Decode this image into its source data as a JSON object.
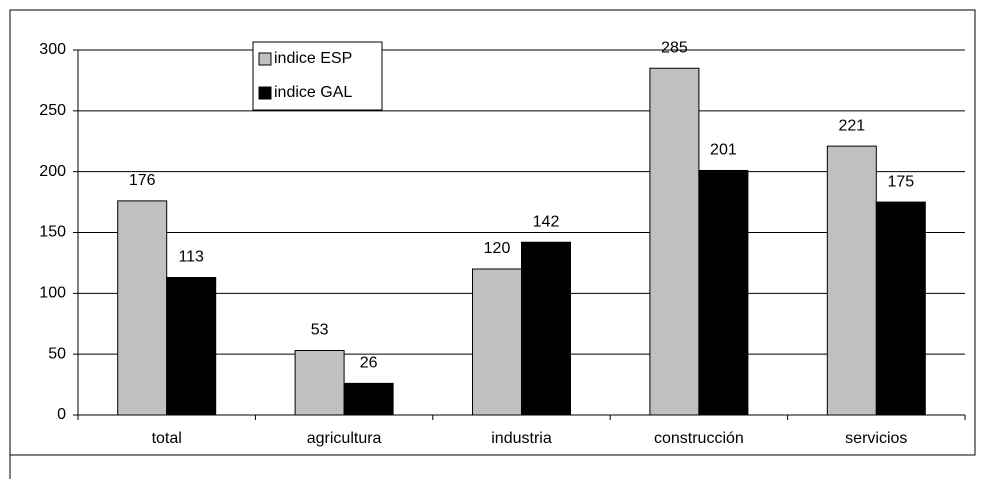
{
  "chart_data": {
    "type": "bar",
    "categories": [
      "total",
      "agricultura",
      "industria",
      "construcción",
      "servicios"
    ],
    "series": [
      {
        "name": "indice ESP",
        "color": "#c0c0c0",
        "values": [
          176,
          53,
          120,
          285,
          221
        ]
      },
      {
        "name": "indice GAL",
        "color": "#000000",
        "values": [
          113,
          26,
          142,
          201,
          175
        ]
      }
    ],
    "ylim": [
      0,
      300
    ],
    "yticks": [
      0,
      50,
      100,
      150,
      200,
      250,
      300
    ],
    "grid": true,
    "legend": "top-left"
  }
}
